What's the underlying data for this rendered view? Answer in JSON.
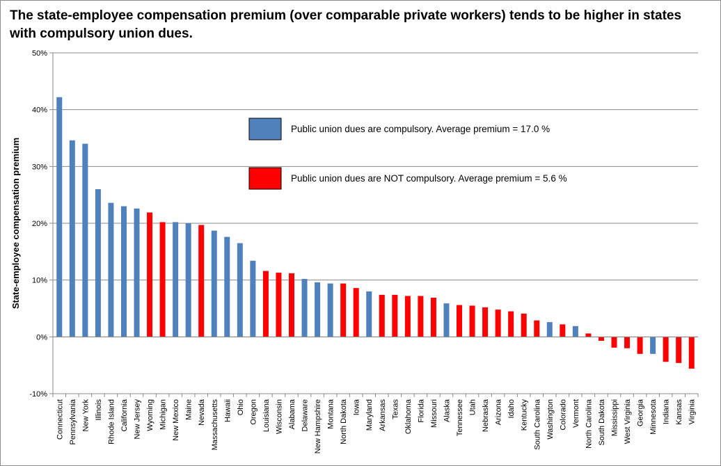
{
  "chart_data": {
    "type": "bar",
    "title": "The state-employee compensation premium (over comparable private workers) tends to be higher in states with compulsory union dues.",
    "xlabel": "",
    "ylabel": "State-employee compensation premium",
    "ylim": [
      -10,
      50
    ],
    "yticks": [
      -10,
      0,
      10,
      20,
      30,
      40,
      50
    ],
    "ytick_labels": [
      "-10%",
      "0%",
      "10%",
      "20%",
      "30%",
      "40%",
      "50%"
    ],
    "grid": true,
    "legend_position": "upper-center",
    "series": [
      {
        "name": "Public union dues are compulsory. Average premium = 17.0 %",
        "color": "#4f81bd",
        "key": "compulsory"
      },
      {
        "name": "Public union dues are NOT compulsory. Average premium = 5.6 %",
        "color": "#ff0000",
        "key": "not_compulsory"
      }
    ],
    "categories": [
      "Connecticut",
      "Pennsylvania",
      "New York",
      "Illinois",
      "Rhode Island",
      "California",
      "New Jersey",
      "Wyoming",
      "Michigan",
      "New Mexico",
      "Maine",
      "Nevada",
      "Massachusetts",
      "Hawaii",
      "Ohio",
      "Oregon",
      "Louisiana",
      "Wisconsin",
      "Alabama",
      "Delaware",
      "New Hampshire",
      "Montana",
      "North Dakota",
      "Iowa",
      "Maryland",
      "Arkansas",
      "Texas",
      "Oklahoma",
      "Florida",
      "Missouri",
      "Alaska",
      "Tennessee",
      "Utah",
      "Nebraska",
      "Arizona",
      "Idaho",
      "Kentucky",
      "South Carolina",
      "Washington",
      "Colorado",
      "Vermont",
      "North Carolina",
      "South Dakota",
      "Mississippi",
      "West Virginia",
      "Georgia",
      "Minnesota",
      "Indiana",
      "Kansas",
      "Virginia"
    ],
    "values": [
      42.2,
      34.6,
      34.0,
      26.0,
      23.6,
      23.0,
      22.6,
      21.9,
      20.2,
      20.2,
      20.0,
      19.7,
      18.7,
      17.6,
      16.5,
      13.4,
      11.6,
      11.3,
      11.2,
      10.2,
      9.6,
      9.4,
      9.4,
      8.6,
      8.0,
      7.4,
      7.4,
      7.2,
      7.2,
      6.9,
      5.9,
      5.6,
      5.5,
      5.2,
      4.8,
      4.5,
      4.1,
      2.9,
      2.6,
      2.2,
      1.9,
      0.6,
      -0.7,
      -1.9,
      -2.0,
      -3.0,
      -3.0,
      -4.4,
      -4.6,
      -5.6
    ],
    "groups": [
      "compulsory",
      "compulsory",
      "compulsory",
      "compulsory",
      "compulsory",
      "compulsory",
      "compulsory",
      "not_compulsory",
      "not_compulsory",
      "compulsory",
      "compulsory",
      "not_compulsory",
      "compulsory",
      "compulsory",
      "compulsory",
      "compulsory",
      "not_compulsory",
      "not_compulsory",
      "not_compulsory",
      "compulsory",
      "compulsory",
      "compulsory",
      "not_compulsory",
      "not_compulsory",
      "compulsory",
      "not_compulsory",
      "not_compulsory",
      "not_compulsory",
      "not_compulsory",
      "not_compulsory",
      "compulsory",
      "not_compulsory",
      "not_compulsory",
      "not_compulsory",
      "not_compulsory",
      "not_compulsory",
      "not_compulsory",
      "not_compulsory",
      "compulsory",
      "not_compulsory",
      "compulsory",
      "not_compulsory",
      "not_compulsory",
      "not_compulsory",
      "not_compulsory",
      "not_compulsory",
      "compulsory",
      "not_compulsory",
      "not_compulsory",
      "not_compulsory"
    ]
  }
}
